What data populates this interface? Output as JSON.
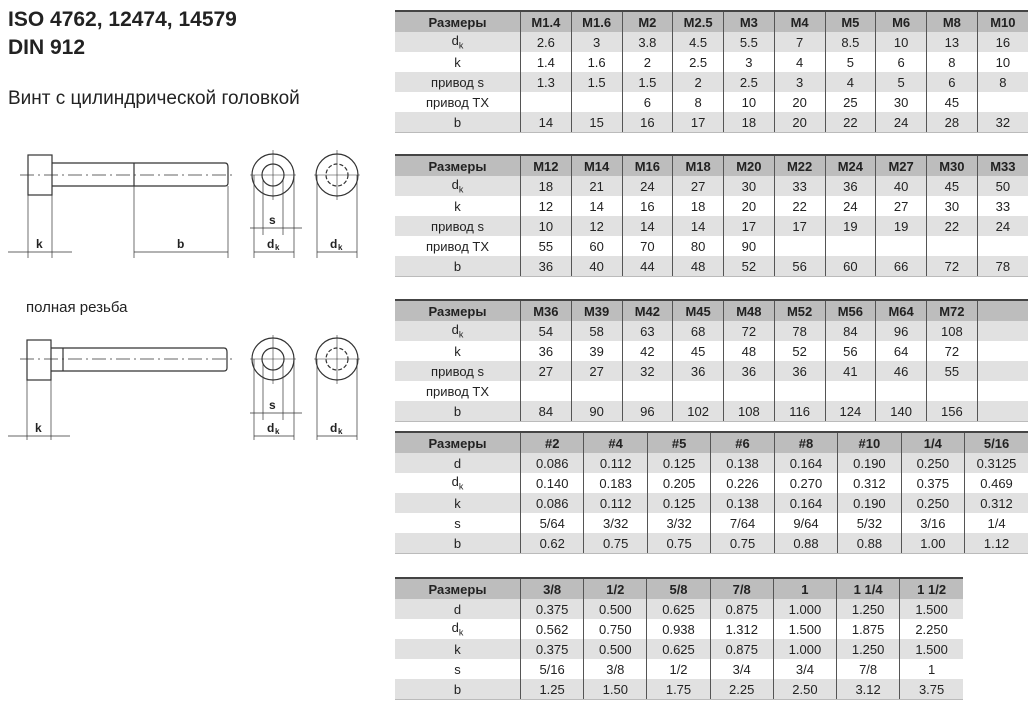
{
  "title_line1": "ISO 4762, 12474, 14579",
  "title_line2": "DIN 912",
  "subtitle": "Винт с цилиндрической головкой",
  "full_thread_label": "полная резьба",
  "diagram_labels": {
    "k": "k",
    "b": "b",
    "s": "s",
    "dk_main": "d",
    "dk_sub": "k"
  },
  "tables": [
    {
      "header": [
        "Размеры",
        "M1.4",
        "M1.6",
        "M2",
        "M2.5",
        "M3",
        "M4",
        "M5",
        "M6",
        "M8",
        "M10"
      ],
      "rows": [
        {
          "label": "d",
          "sub": "k",
          "values": [
            "2.6",
            "3",
            "3.8",
            "4.5",
            "5.5",
            "7",
            "8.5",
            "10",
            "13",
            "16"
          ]
        },
        {
          "label": "k",
          "values": [
            "1.4",
            "1.6",
            "2",
            "2.5",
            "3",
            "4",
            "5",
            "6",
            "8",
            "10"
          ]
        },
        {
          "label": "привод s",
          "values": [
            "1.3",
            "1.5",
            "1.5",
            "2",
            "2.5",
            "3",
            "4",
            "5",
            "6",
            "8"
          ]
        },
        {
          "label": "привод TX",
          "values": [
            "",
            "",
            "6",
            "8",
            "10",
            "20",
            "25",
            "30",
            "45",
            ""
          ]
        },
        {
          "label": "b",
          "values": [
            "14",
            "15",
            "16",
            "17",
            "18",
            "20",
            "22",
            "24",
            "28",
            "32"
          ]
        }
      ]
    },
    {
      "header": [
        "Размеры",
        "M12",
        "M14",
        "M16",
        "M18",
        "M20",
        "M22",
        "M24",
        "M27",
        "M30",
        "M33"
      ],
      "rows": [
        {
          "label": "d",
          "sub": "k",
          "values": [
            "18",
            "21",
            "24",
            "27",
            "30",
            "33",
            "36",
            "40",
            "45",
            "50"
          ]
        },
        {
          "label": "k",
          "values": [
            "12",
            "14",
            "16",
            "18",
            "20",
            "22",
            "24",
            "27",
            "30",
            "33"
          ]
        },
        {
          "label": "привод s",
          "values": [
            "10",
            "12",
            "14",
            "14",
            "17",
            "17",
            "19",
            "19",
            "22",
            "24"
          ]
        },
        {
          "label": "привод TX",
          "values": [
            "55",
            "60",
            "70",
            "80",
            "90",
            "",
            "",
            "",
            "",
            ""
          ]
        },
        {
          "label": "b",
          "values": [
            "36",
            "40",
            "44",
            "48",
            "52",
            "56",
            "60",
            "66",
            "72",
            "78"
          ]
        }
      ]
    },
    {
      "header": [
        "Размеры",
        "M36",
        "M39",
        "M42",
        "M45",
        "M48",
        "M52",
        "M56",
        "M64",
        "M72",
        ""
      ],
      "rows": [
        {
          "label": "d",
          "sub": "k",
          "values": [
            "54",
            "58",
            "63",
            "68",
            "72",
            "78",
            "84",
            "96",
            "108",
            ""
          ]
        },
        {
          "label": "k",
          "values": [
            "36",
            "39",
            "42",
            "45",
            "48",
            "52",
            "56",
            "64",
            "72",
            ""
          ]
        },
        {
          "label": "привод s",
          "values": [
            "27",
            "27",
            "32",
            "36",
            "36",
            "36",
            "41",
            "46",
            "55",
            ""
          ]
        },
        {
          "label": "привод TX",
          "values": [
            "",
            "",
            "",
            "",
            "",
            "",
            "",
            "",
            "",
            ""
          ]
        },
        {
          "label": "b",
          "values": [
            "84",
            "90",
            "96",
            "102",
            "108",
            "116",
            "124",
            "140",
            "156",
            ""
          ]
        }
      ]
    },
    {
      "header": [
        "Размеры",
        "#2",
        "#4",
        "#5",
        "#6",
        "#8",
        "#10",
        "1/4",
        "5/16"
      ],
      "rows": [
        {
          "label": "d",
          "values": [
            "0.086",
            "0.112",
            "0.125",
            "0.138",
            "0.164",
            "0.190",
            "0.250",
            "0.3125"
          ]
        },
        {
          "label": "d",
          "sub": "k",
          "values": [
            "0.140",
            "0.183",
            "0.205",
            "0.226",
            "0.270",
            "0.312",
            "0.375",
            "0.469"
          ]
        },
        {
          "label": "k",
          "values": [
            "0.086",
            "0.112",
            "0.125",
            "0.138",
            "0.164",
            "0.190",
            "0.250",
            "0.312"
          ]
        },
        {
          "label": "s",
          "values": [
            "5/64",
            "3/32",
            "3/32",
            "7/64",
            "9/64",
            "5/32",
            "3/16",
            "1/4"
          ]
        },
        {
          "label": "b",
          "values": [
            "0.62",
            "0.75",
            "0.75",
            "0.75",
            "0.88",
            "0.88",
            "1.00",
            "1.12"
          ]
        }
      ]
    },
    {
      "header": [
        "Размеры",
        "3/8",
        "1/2",
        "5/8",
        "7/8",
        "1",
        "1 1/4",
        "1 1/2"
      ],
      "rows": [
        {
          "label": "d",
          "values": [
            "0.375",
            "0.500",
            "0.625",
            "0.875",
            "1.000",
            "1.250",
            "1.500"
          ]
        },
        {
          "label": "d",
          "sub": "k",
          "values": [
            "0.562",
            "0.750",
            "0.938",
            "1.312",
            "1.500",
            "1.875",
            "2.250"
          ]
        },
        {
          "label": "k",
          "values": [
            "0.375",
            "0.500",
            "0.625",
            "0.875",
            "1.000",
            "1.250",
            "1.500"
          ]
        },
        {
          "label": "s",
          "values": [
            "5/16",
            "3/8",
            "1/2",
            "3/4",
            "3/4",
            "7/8",
            "1"
          ]
        },
        {
          "label": "b",
          "values": [
            "1.25",
            "1.50",
            "1.75",
            "2.25",
            "2.50",
            "3.12",
            "3.75"
          ]
        }
      ]
    }
  ]
}
